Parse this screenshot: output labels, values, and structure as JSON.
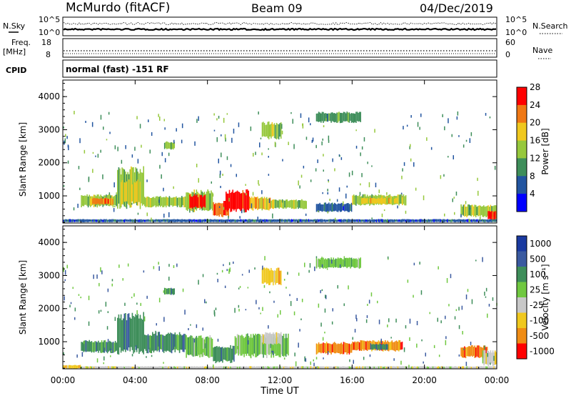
{
  "header": {
    "station": "McMurdo (fitACF)",
    "beam": "Beam 09",
    "date": "04/Dec/2019"
  },
  "noise_panel": {
    "left_label": "N.Sky",
    "right_label": "N.Search",
    "left_ticks": [
      "10^5",
      "10^0"
    ],
    "right_ticks": [
      "10^5",
      "10^0"
    ]
  },
  "freq_panel": {
    "left_label_1": "Freq.",
    "left_label_2": "[MHz]",
    "right_label": "Nave",
    "left_ticks": [
      "18",
      "8"
    ],
    "right_ticks": [
      "60",
      "0"
    ]
  },
  "cpid": {
    "label": "CPID",
    "value": "normal (fast) -151 RF"
  },
  "power_panel": {
    "ylabel": "Slant Range [km]",
    "cbar_label": "Power [dB]"
  },
  "velocity_panel": {
    "ylabel": "Slant Range [km]",
    "cbar_label": "Velocity [m s⁻¹]"
  },
  "xaxis": {
    "label": "Time UT",
    "ticks": [
      "00:00",
      "04:00",
      "08:00",
      "12:00",
      "16:00",
      "20:00",
      "00:00"
    ]
  },
  "chart_data": {
    "type": "heatmap",
    "title": "McMurdo (fitACF)",
    "x_range_hours": [
      0,
      24
    ],
    "x_ticks": [
      "00:00",
      "04:00",
      "08:00",
      "12:00",
      "16:00",
      "20:00",
      "00:00"
    ],
    "xlabel": "Time UT",
    "y_range_km": [
      180,
      4500
    ],
    "y_ticks": [
      1000,
      2000,
      3000,
      4000
    ],
    "ylabel": "Slant Range [km]",
    "power_colorbar": {
      "label": "Power [dB]",
      "ticks": [
        "4",
        "8",
        "12",
        "16",
        "20",
        "24",
        "28"
      ],
      "colors": [
        "#0000ff",
        "#2255a0",
        "#3e8e5a",
        "#96c83c",
        "#f0c81e",
        "#f07814",
        "#ff0000"
      ]
    },
    "velocity_colorbar": {
      "label": "Velocity [m s⁻¹]",
      "ticks": [
        "1000",
        "500",
        "100",
        "25",
        "-25",
        "-100",
        "-500",
        "-1000"
      ],
      "colors": [
        "#1a3aa0",
        "#3a5aa0",
        "#3e8e5a",
        "#70c840",
        "#c8c8c8",
        "#f0c81e",
        "#f08c14",
        "#ff0000"
      ]
    },
    "power_blobs": [
      {
        "t0": 1.0,
        "t1": 3.0,
        "r0": 650,
        "r1": 1050,
        "level": 3
      },
      {
        "t0": 1.5,
        "t1": 2.8,
        "r0": 720,
        "r1": 950,
        "level": 5
      },
      {
        "t0": 3.0,
        "t1": 4.5,
        "r0": 600,
        "r1": 1900,
        "level": 3
      },
      {
        "t0": 3.2,
        "t1": 4.3,
        "r0": 700,
        "r1": 1500,
        "level": 4
      },
      {
        "t0": 4.5,
        "t1": 6.8,
        "r0": 650,
        "r1": 1000,
        "level": 3
      },
      {
        "t0": 5.6,
        "t1": 6.2,
        "r0": 2400,
        "r1": 2650,
        "level": 3
      },
      {
        "t0": 6.8,
        "t1": 8.3,
        "r0": 500,
        "r1": 1200,
        "level": 3
      },
      {
        "t0": 7.0,
        "t1": 7.9,
        "r0": 600,
        "r1": 1050,
        "level": 6
      },
      {
        "t0": 8.3,
        "t1": 9.2,
        "r0": 350,
        "r1": 850,
        "level": 5
      },
      {
        "t0": 9.0,
        "t1": 10.3,
        "r0": 500,
        "r1": 1200,
        "level": 6
      },
      {
        "t0": 10.3,
        "t1": 11.5,
        "r0": 550,
        "r1": 1000,
        "level": 4
      },
      {
        "t0": 11.0,
        "t1": 12.1,
        "r0": 2700,
        "r1": 3250,
        "level": 3
      },
      {
        "t0": 11.5,
        "t1": 13.5,
        "r0": 600,
        "r1": 900,
        "level": 3
      },
      {
        "t0": 14.0,
        "t1": 16.0,
        "r0": 500,
        "r1": 800,
        "level": 1
      },
      {
        "t0": 14.0,
        "t1": 16.5,
        "r0": 3200,
        "r1": 3550,
        "level": 2
      },
      {
        "t0": 16.0,
        "t1": 19.0,
        "r0": 700,
        "r1": 1050,
        "level": 3
      },
      {
        "t0": 16.5,
        "t1": 18.5,
        "r0": 750,
        "r1": 950,
        "level": 4
      },
      {
        "t0": 22.0,
        "t1": 24.0,
        "r0": 350,
        "r1": 750,
        "level": 3
      },
      {
        "t0": 23.5,
        "t1": 24.0,
        "r0": 250,
        "r1": 550,
        "level": 6
      },
      {
        "t0": 0.0,
        "t1": 24.0,
        "r0": 200,
        "r1": 300,
        "level": 1
      }
    ],
    "velocity_blobs": [
      {
        "t0": 1.0,
        "t1": 3.0,
        "r0": 650,
        "r1": 1050,
        "level": 2
      },
      {
        "t0": 3.0,
        "t1": 4.5,
        "r0": 600,
        "r1": 1900,
        "level": 2
      },
      {
        "t0": 4.5,
        "t1": 6.8,
        "r0": 650,
        "r1": 1300,
        "level": 2
      },
      {
        "t0": 5.6,
        "t1": 6.2,
        "r0": 2400,
        "r1": 2650,
        "level": 2
      },
      {
        "t0": 6.8,
        "t1": 8.3,
        "r0": 500,
        "r1": 1200,
        "level": 3
      },
      {
        "t0": 8.3,
        "t1": 9.5,
        "r0": 350,
        "r1": 900,
        "level": 2
      },
      {
        "t0": 9.5,
        "t1": 12.5,
        "r0": 500,
        "r1": 1250,
        "level": 3
      },
      {
        "t0": 11.0,
        "t1": 12.1,
        "r0": 900,
        "r1": 1300,
        "level": 4
      },
      {
        "t0": 11.0,
        "t1": 12.1,
        "r0": 2700,
        "r1": 3250,
        "level": 5
      },
      {
        "t0": 14.0,
        "t1": 16.0,
        "r0": 600,
        "r1": 1000,
        "level": 6
      },
      {
        "t0": 14.0,
        "t1": 16.5,
        "r0": 3200,
        "r1": 3550,
        "level": 3
      },
      {
        "t0": 16.0,
        "t1": 18.8,
        "r0": 700,
        "r1": 1050,
        "level": 6
      },
      {
        "t0": 17.0,
        "t1": 18.0,
        "r0": 750,
        "r1": 950,
        "level": 2
      },
      {
        "t0": 22.0,
        "t1": 23.5,
        "r0": 500,
        "r1": 900,
        "level": 6
      },
      {
        "t0": 23.2,
        "t1": 24.0,
        "r0": 250,
        "r1": 750,
        "level": 4
      },
      {
        "t0": 0.0,
        "t1": 1.0,
        "r0": 180,
        "r1": 300,
        "level": 5
      },
      {
        "t0": 1.0,
        "t1": 24.0,
        "r0": 180,
        "r1": 260,
        "level": 4
      }
    ]
  }
}
